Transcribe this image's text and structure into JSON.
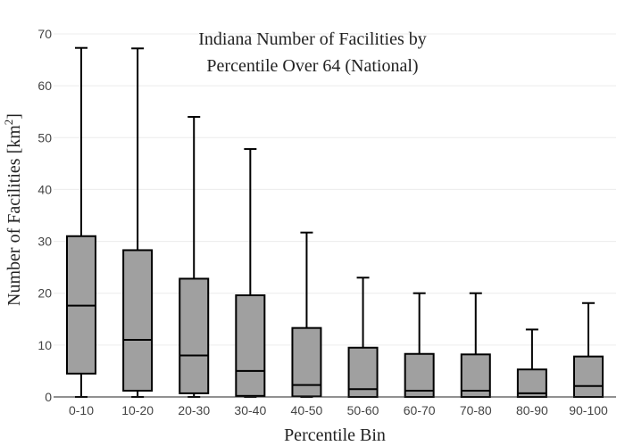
{
  "chart_data": {
    "type": "box",
    "title_lines": [
      "Indiana Number of Facilities by",
      "Percentile Over 64 (National)"
    ],
    "xlabel": "Percentile Bin",
    "ylabel_text": "Number of Facilities  [km",
    "ylabel_superscript": "2",
    "ylabel_suffix": "]",
    "ylim": [
      0,
      70
    ],
    "yticks": [
      0,
      10,
      20,
      30,
      40,
      50,
      60,
      70
    ],
    "grid": true,
    "box_color": "#a0a0a0",
    "line_color": "#000000",
    "categories": [
      "0-10",
      "10-20",
      "20-30",
      "30-40",
      "40-50",
      "50-60",
      "60-70",
      "70-80",
      "80-90",
      "90-100"
    ],
    "boxes": [
      {
        "min": 0,
        "q1": 4.5,
        "median": 17.6,
        "q3": 31.0,
        "max": 67.3
      },
      {
        "min": 0,
        "q1": 1.2,
        "median": 11.0,
        "q3": 28.3,
        "max": 67.2
      },
      {
        "min": 0,
        "q1": 0.7,
        "median": 8.0,
        "q3": 22.8,
        "max": 54.0
      },
      {
        "min": 0,
        "q1": 0.2,
        "median": 5.0,
        "q3": 19.6,
        "max": 47.8
      },
      {
        "min": 0,
        "q1": 0.1,
        "median": 2.3,
        "q3": 13.3,
        "max": 31.7
      },
      {
        "min": 0,
        "q1": 0.0,
        "median": 1.5,
        "q3": 9.5,
        "max": 23.0
      },
      {
        "min": 0,
        "q1": 0.0,
        "median": 1.2,
        "q3": 8.3,
        "max": 20.0
      },
      {
        "min": 0,
        "q1": 0.0,
        "median": 1.2,
        "q3": 8.2,
        "max": 20.0
      },
      {
        "min": 0,
        "q1": 0.0,
        "median": 0.7,
        "q3": 5.3,
        "max": 13.0
      },
      {
        "min": 0,
        "q1": 0.0,
        "median": 2.1,
        "q3": 7.8,
        "max": 18.1
      }
    ]
  }
}
